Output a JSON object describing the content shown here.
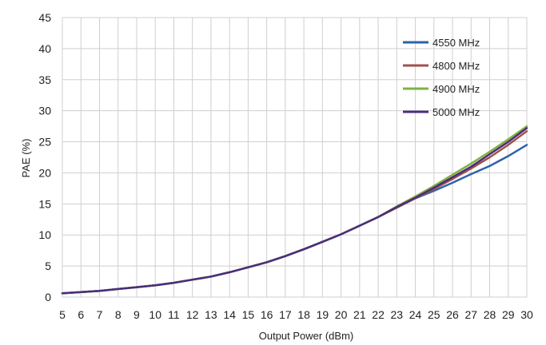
{
  "chart_data": {
    "type": "line",
    "title": "",
    "xlabel": "Output Power (dBm)",
    "ylabel": "PAE (%)",
    "xlim": [
      5,
      30
    ],
    "ylim": [
      0,
      45
    ],
    "x_ticks": [
      5,
      6,
      7,
      8,
      9,
      10,
      11,
      12,
      13,
      14,
      15,
      16,
      17,
      18,
      19,
      20,
      21,
      22,
      23,
      24,
      25,
      26,
      27,
      28,
      29,
      30
    ],
    "y_ticks": [
      0,
      5,
      10,
      15,
      20,
      25,
      30,
      35,
      40,
      45
    ],
    "grid": true,
    "legend_position": "top-right",
    "x": [
      5,
      6,
      7,
      8,
      9,
      10,
      11,
      12,
      13,
      14,
      15,
      16,
      17,
      18,
      19,
      20,
      21,
      22,
      23,
      24,
      25,
      26,
      27,
      28,
      29,
      30
    ],
    "series": [
      {
        "name": "4550 MHz",
        "color": "#2e62a9",
        "values": [
          0.6,
          0.8,
          1.0,
          1.3,
          1.6,
          1.9,
          2.3,
          2.8,
          3.3,
          4.0,
          4.8,
          5.6,
          6.6,
          7.7,
          8.9,
          10.1,
          11.5,
          12.9,
          14.4,
          15.9,
          17.1,
          18.4,
          19.8,
          21.1,
          22.7,
          24.5
        ]
      },
      {
        "name": "4800 MHz",
        "color": "#a0524c",
        "values": [
          0.6,
          0.8,
          1.0,
          1.3,
          1.6,
          1.9,
          2.3,
          2.8,
          3.3,
          4.0,
          4.8,
          5.6,
          6.6,
          7.7,
          8.9,
          10.1,
          11.5,
          12.9,
          14.4,
          15.9,
          17.4,
          19.0,
          20.7,
          22.5,
          24.5,
          26.7
        ]
      },
      {
        "name": "4900 MHz",
        "color": "#7fb23f",
        "values": [
          0.6,
          0.8,
          1.0,
          1.3,
          1.6,
          1.9,
          2.3,
          2.8,
          3.3,
          4.0,
          4.8,
          5.6,
          6.6,
          7.7,
          8.9,
          10.1,
          11.5,
          12.9,
          14.6,
          16.2,
          17.9,
          19.7,
          21.5,
          23.4,
          25.4,
          27.5
        ]
      },
      {
        "name": "5000 MHz",
        "color": "#4b2d7a",
        "values": [
          0.6,
          0.8,
          1.0,
          1.3,
          1.6,
          1.9,
          2.3,
          2.8,
          3.3,
          4.0,
          4.8,
          5.6,
          6.6,
          7.7,
          8.9,
          10.1,
          11.5,
          12.9,
          14.5,
          16.0,
          17.6,
          19.3,
          21.0,
          23.0,
          25.0,
          27.2
        ]
      }
    ]
  }
}
